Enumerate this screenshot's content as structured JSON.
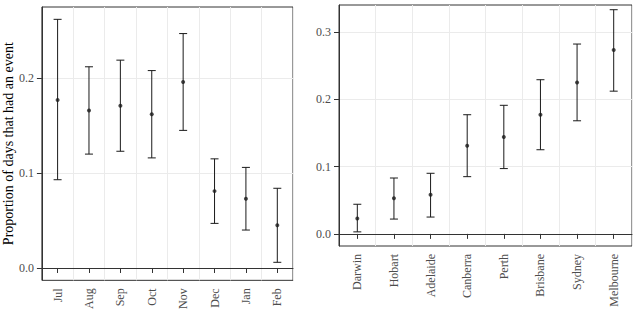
{
  "chart_data": [
    {
      "type": "scatter",
      "y_label": "Proportion of days that had an event",
      "categories": [
        "Jul",
        "Aug",
        "Sep",
        "Oct",
        "Nov",
        "Dec",
        "Jan",
        "Feb"
      ],
      "values": [
        0.177,
        0.166,
        0.171,
        0.162,
        0.196,
        0.081,
        0.073,
        0.045
      ],
      "error_low": [
        0.093,
        0.12,
        0.123,
        0.116,
        0.145,
        0.047,
        0.04,
        0.006
      ],
      "error_high": [
        0.262,
        0.212,
        0.219,
        0.208,
        0.247,
        0.115,
        0.106,
        0.084
      ],
      "color": "#1a1a1a",
      "ylim": [
        -0.013,
        0.275
      ],
      "yticks": [
        {
          "value": 0,
          "label": "0.0"
        },
        0.1,
        0.2
      ],
      "grid": true
    },
    {
      "type": "scatter",
      "categories": [
        "Darwin",
        "Hobart",
        "Adelaide",
        "Canberra",
        "Perth",
        "Brisbane",
        "Sydney",
        "Melbourne"
      ],
      "values": [
        0.023,
        0.053,
        0.058,
        0.131,
        0.144,
        0.177,
        0.225,
        0.273
      ],
      "error_low": [
        0.003,
        0.022,
        0.025,
        0.085,
        0.097,
        0.125,
        0.168,
        0.212
      ],
      "error_high": [
        0.044,
        0.083,
        0.09,
        0.177,
        0.191,
        0.229,
        0.282,
        0.333
      ],
      "color": "#1a1a1a",
      "ylim": [
        -0.018,
        0.34
      ],
      "yticks": [
        {
          "value": 0,
          "label": "0.0"
        },
        0.1,
        0.2,
        0.3
      ],
      "grid": true
    }
  ]
}
